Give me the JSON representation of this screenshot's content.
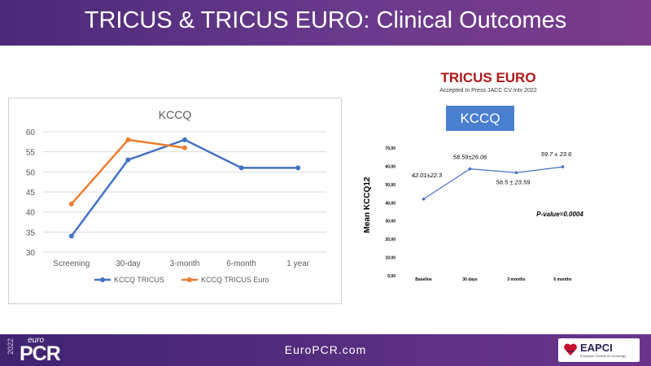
{
  "header": {
    "title": "TRICUS & TRICUS EURO: Clinical Outcomes"
  },
  "footer": {
    "url": "EuroPCR.com",
    "logo_year": "2022",
    "logo_euro": "euro",
    "logo_pcr": "PCR",
    "partner_name": "EAPCI",
    "partner_sub": "European Society of Cardiology"
  },
  "right_panel": {
    "title": "TRICUS EURO",
    "subtitle": "Accepted In Press JACC CV Intv 2022",
    "button_label": "KCCQ"
  },
  "colors": {
    "tricus": "#4472c4",
    "tricus_euro": "#ed7d31",
    "right_line": "#4472c4",
    "title_red": "#b01818"
  },
  "chart_data": [
    {
      "type": "line",
      "title": "KCCQ",
      "categories": [
        "Screening",
        "30-day",
        "3-month",
        "6-month",
        "1 year"
      ],
      "ylim": [
        30,
        60
      ],
      "yticks": [
        "30",
        "35",
        "40",
        "45",
        "50",
        "55",
        "60"
      ],
      "grid": true,
      "legend": "bottom",
      "series": [
        {
          "name": "KCCQ TRICUS",
          "values": [
            34,
            53,
            58,
            51,
            51
          ]
        },
        {
          "name": "KCCQ TRICUS Euro",
          "values": [
            42,
            58,
            56,
            null,
            null
          ]
        }
      ]
    },
    {
      "type": "line",
      "title": "",
      "categories": [
        "Baseline",
        "30 days",
        "3 months",
        "6 months"
      ],
      "ylabel": "Mean KCCQ12",
      "ylim": [
        0,
        70
      ],
      "yticks": [
        "0,00",
        "10,00",
        "20,00",
        "30,00",
        "40,00",
        "50,00",
        "60,00",
        "70,00"
      ],
      "grid": false,
      "series": [
        {
          "values": [
            42.01,
            58.59,
            56.5,
            59.7
          ]
        }
      ],
      "data_labels": [
        "42.01±22.3",
        "58.59±26.06",
        "56.5 ± 23.59",
        "59.7 ± 23.6"
      ],
      "annotation": "P-value=0.0004"
    }
  ]
}
